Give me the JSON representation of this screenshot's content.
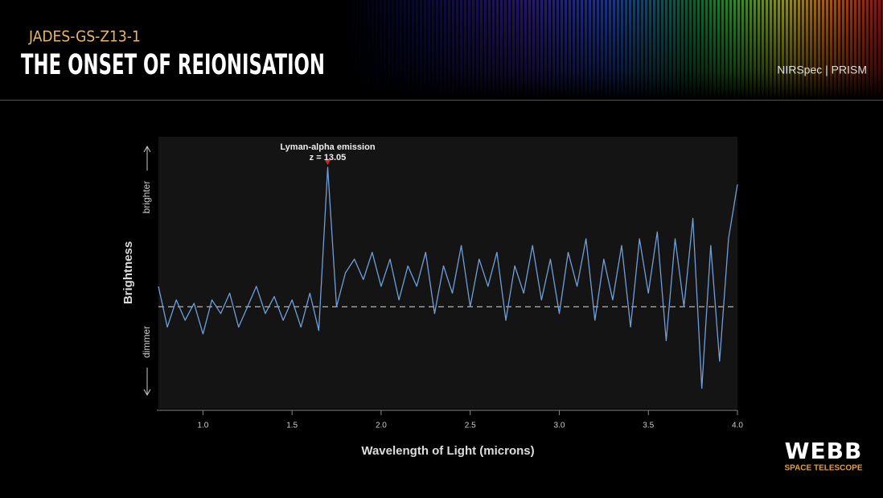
{
  "header": {
    "subtitle": "JADES-GS-Z13-1",
    "title": "THE ONSET OF REIONISATION",
    "instrument": "NIRSpec | PRISM"
  },
  "logo": {
    "name": "WEBB",
    "tagline": "SPACE TELESCOPE"
  },
  "chart_data": {
    "type": "line",
    "xlabel": "Wavelength of Light (microns)",
    "ylabel": "Brightness",
    "y_high_label": "brighter",
    "y_low_label": "dimmer",
    "xlim": [
      0.75,
      4.0
    ],
    "xticks": [
      {
        "value": 1.0,
        "label": "1.0"
      },
      1.5,
      {
        "value": 2.0,
        "label": "2.0"
      },
      2.5,
      {
        "value": 3.0,
        "label": "3.0"
      },
      3.5,
      {
        "value": 4.0,
        "label": "4.0"
      }
    ],
    "ylim": [
      -1.5,
      2.5
    ],
    "reference_line": 0,
    "annotation": {
      "lines": [
        "Lyman-alpha emission",
        "z = 13.05"
      ],
      "x": 1.7,
      "y": 2.05,
      "color": "#e02020"
    },
    "x": [
      0.75,
      0.8,
      0.85,
      0.9,
      0.95,
      1.0,
      1.05,
      1.1,
      1.15,
      1.2,
      1.25,
      1.3,
      1.35,
      1.4,
      1.45,
      1.5,
      1.55,
      1.6,
      1.65,
      1.7,
      1.75,
      1.8,
      1.85,
      1.9,
      1.95,
      2.0,
      2.05,
      2.1,
      2.15,
      2.2,
      2.25,
      2.3,
      2.35,
      2.4,
      2.45,
      2.5,
      2.55,
      2.6,
      2.65,
      2.7,
      2.75,
      2.8,
      2.85,
      2.9,
      2.95,
      3.0,
      3.05,
      3.1,
      3.15,
      3.2,
      3.25,
      3.3,
      3.35,
      3.4,
      3.45,
      3.5,
      3.55,
      3.6,
      3.65,
      3.7,
      3.75,
      3.8,
      3.85,
      3.9,
      3.95,
      4.0
    ],
    "series": [
      {
        "color": "#6f9fd8",
        "values": [
          0.3,
          -0.3,
          0.1,
          -0.2,
          0.05,
          -0.4,
          0.1,
          -0.1,
          0.2,
          -0.3,
          0.0,
          0.3,
          -0.1,
          0.15,
          -0.2,
          0.1,
          -0.3,
          0.2,
          -0.35,
          2.05,
          0.0,
          0.5,
          0.7,
          0.4,
          0.8,
          0.3,
          0.7,
          0.1,
          0.6,
          0.3,
          0.8,
          -0.1,
          0.6,
          0.2,
          0.9,
          0.0,
          0.7,
          0.3,
          0.8,
          -0.2,
          0.6,
          0.2,
          0.9,
          0.1,
          0.7,
          -0.1,
          0.8,
          0.3,
          1.0,
          -0.2,
          0.7,
          0.1,
          0.9,
          -0.3,
          1.0,
          0.2,
          1.1,
          -0.5,
          1.0,
          0.0,
          1.3,
          -1.2,
          0.9,
          -0.8,
          1.0,
          1.8
        ]
      }
    ]
  }
}
